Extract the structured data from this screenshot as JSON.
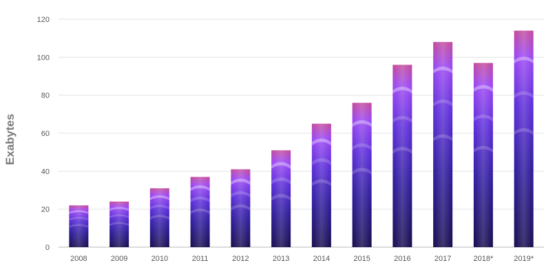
{
  "chart_data": {
    "type": "bar",
    "title": "",
    "xlabel": "",
    "ylabel": "Exabytes",
    "categories": [
      "2008",
      "2009",
      "2010",
      "2011",
      "2012",
      "2013",
      "2014",
      "2015",
      "2016",
      "2017",
      "2018*",
      "2019*"
    ],
    "values": [
      22,
      24,
      31,
      37,
      41,
      51,
      65,
      76,
      96,
      108,
      97,
      114
    ],
    "ylim": [
      0,
      120
    ],
    "yticks": [
      "0",
      "20",
      "40",
      "60",
      "80",
      "100",
      "120"
    ],
    "grid": true,
    "legend": "none",
    "colors": {
      "bar_base": "#1a1060",
      "bar_mid": "#5a2bd8",
      "bar_top": "#a64bff",
      "bar_cap": "#d24a8f",
      "grid": "#e3e3e3",
      "axis": "#bbbbbb"
    }
  }
}
